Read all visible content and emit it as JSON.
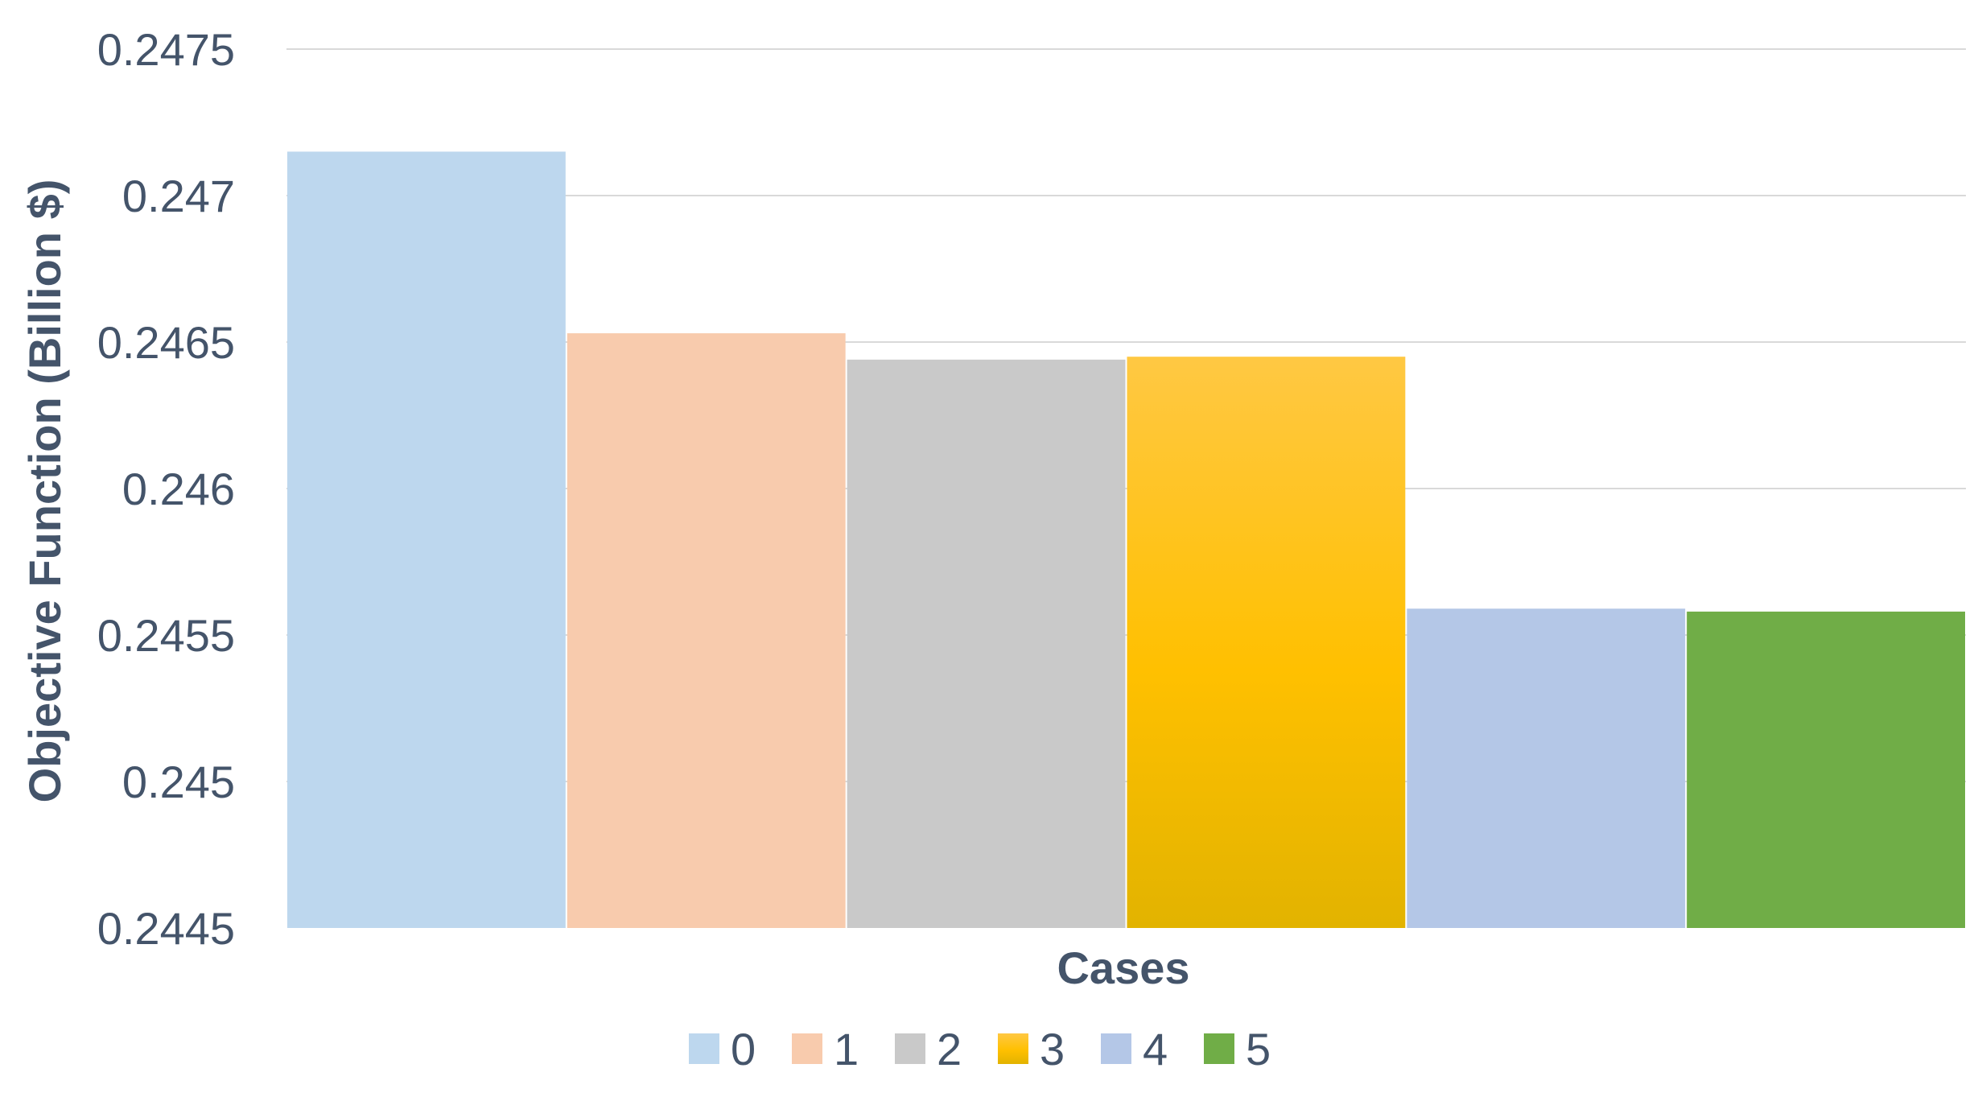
{
  "chart_data": {
    "type": "bar",
    "xlabel": "Cases",
    "ylabel": "Objective Function (Billion $)",
    "ylim": [
      0.2445,
      0.2475
    ],
    "yticks": [
      0.2445,
      0.245,
      0.2455,
      0.246,
      0.2465,
      0.247,
      0.2475
    ],
    "ytick_labels": [
      "0.2445",
      "0.245",
      "0.2455",
      "0.246",
      "0.2465",
      "0.247",
      "0.2475"
    ],
    "grid": true,
    "legend_position": "bottom",
    "series": [
      {
        "name": "0",
        "value": 0.24715,
        "color": "#bdd7ee"
      },
      {
        "name": "1",
        "value": 0.24653,
        "color": "#f8cbad"
      },
      {
        "name": "2",
        "value": 0.24644,
        "color": "#c9c9c9"
      },
      {
        "name": "3",
        "value": 0.24645,
        "color": "#ffc000"
      },
      {
        "name": "4",
        "value": 0.24559,
        "color": "#b4c7e7"
      },
      {
        "name": "5",
        "value": 0.24558,
        "color": "#70ad47"
      }
    ]
  }
}
